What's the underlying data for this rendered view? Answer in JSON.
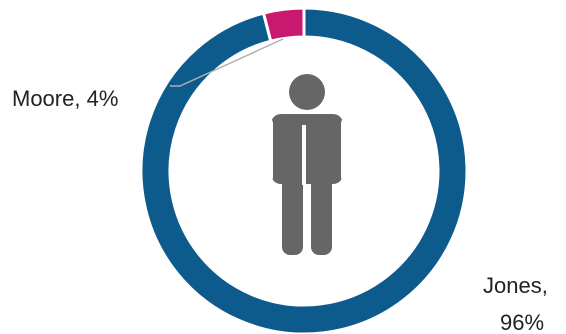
{
  "chart_data": {
    "type": "pie",
    "variant": "donut",
    "title": "",
    "series": [
      {
        "name": "Moore",
        "value": 4,
        "color": "#c8196f",
        "label_lines": [
          "Moore, 4%"
        ]
      },
      {
        "name": "Jones",
        "value": 96,
        "color": "#0d5a8c",
        "label_lines": [
          "Jones,",
          "96%"
        ]
      }
    ],
    "center_icon": "person-icon",
    "center_icon_color": "#666666",
    "leader_line_color": "#b0b0b0"
  }
}
